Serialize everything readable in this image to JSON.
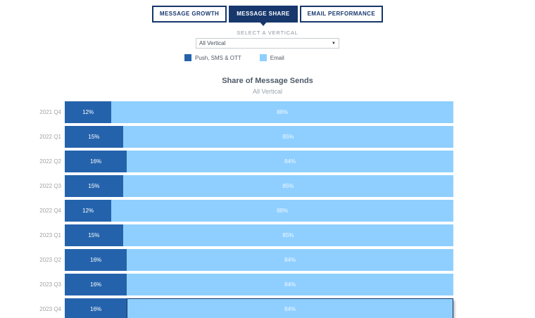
{
  "tabs": [
    {
      "label": "MESSAGE GROWTH",
      "active": false
    },
    {
      "label": "MESSAGE SHARE",
      "active": true
    },
    {
      "label": "EMAIL PERFORMANCE",
      "active": false
    }
  ],
  "filter": {
    "label": "SELECT A VERTICAL",
    "value": "All Vertical",
    "dropdown_icon": "caret-down-icon"
  },
  "legend": [
    {
      "label": "Push, SMS & OTT",
      "color": "#2463AC"
    },
    {
      "label": "Email",
      "color": "#8FCFFF"
    }
  ],
  "chart_data": {
    "type": "bar",
    "orientation": "horizontal",
    "stacked": true,
    "title": "Share of Message Sends",
    "subtitle": "All Vertical",
    "unit": "percent",
    "xlim": [
      0,
      100
    ],
    "grid": false,
    "legend_position": "top-left-above-chart",
    "categories": [
      "2021 Q4",
      "2022 Q1",
      "2022 Q2",
      "2022 Q3",
      "2022 Q4",
      "2023 Q1",
      "2023 Q2",
      "2023 Q3",
      "2023 Q4"
    ],
    "series": [
      {
        "name": "Push, SMS & OTT",
        "color": "#2463AC",
        "values": [
          12,
          15,
          16,
          15,
          12,
          15,
          16,
          16,
          16
        ]
      },
      {
        "name": "Email",
        "color": "#8FCFFF",
        "values": [
          88,
          85,
          84,
          85,
          88,
          85,
          84,
          84,
          84
        ]
      }
    ],
    "data_labels": "value-inside-segment",
    "highlighted_segment": {
      "category": "2023 Q4",
      "series": "Email"
    }
  },
  "colors": {
    "navy": "#17376D",
    "push_blue": "#2463AC",
    "email_blue": "#8FCFFF",
    "row_label_gray": "#A3A3A3"
  }
}
